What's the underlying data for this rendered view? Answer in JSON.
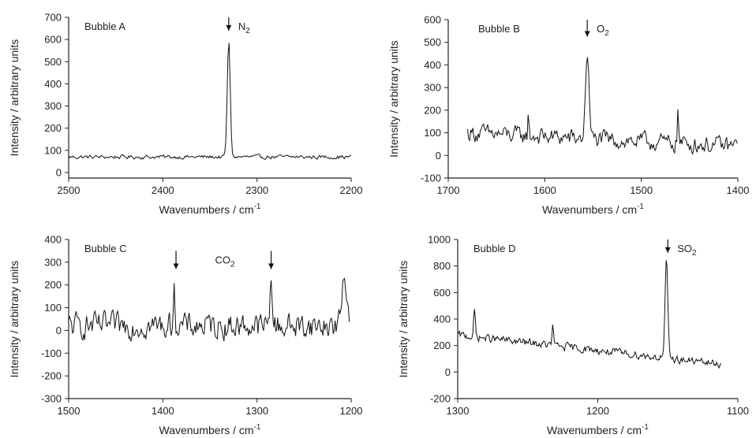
{
  "chart_data": [
    {
      "type": "line",
      "panel_label": "Bubble A",
      "annotations": [
        {
          "text": "N",
          "subscript": "2",
          "x": 2330,
          "arrow_from": 700,
          "arrow_to": 640
        }
      ],
      "xlabel": "Wavenumbers / cm",
      "xlabel_sup": "-1",
      "ylabel": "Intensity / arbitrary units",
      "xlim": [
        2500,
        2200
      ],
      "ylim": [
        -25,
        700
      ],
      "xticks": [
        2500,
        2400,
        2300,
        2200
      ],
      "yticks": [
        0,
        100,
        200,
        300,
        400,
        500,
        600,
        700
      ],
      "baseline": 70,
      "noise": 14,
      "peaks": [
        {
          "x": 2330,
          "height": 525,
          "width": 2.2
        }
      ],
      "x_start": 2500,
      "x_end": 2200,
      "step": 1.2
    },
    {
      "type": "line",
      "panel_label": "Bubble B",
      "annotations": [
        {
          "text": "O",
          "subscript": "2",
          "x": 1556,
          "arrow_from": 600,
          "arrow_to": 525
        }
      ],
      "xlabel": "Wavenumbers / cm",
      "xlabel_sup": "-1",
      "ylabel": "Intensity / arbitrary units",
      "xlim": [
        1700,
        1400
      ],
      "ylim": [
        -100,
        600
      ],
      "xticks": [
        1700,
        1600,
        1500,
        1400
      ],
      "yticks": [
        -100,
        0,
        100,
        200,
        300,
        400,
        500,
        600
      ],
      "baseline": 100,
      "baseline_end": 40,
      "noise": 60,
      "peaks": [
        {
          "x": 1556,
          "height": 390,
          "width": 2.5
        },
        {
          "x": 1462,
          "height": 180,
          "width": 0.8
        },
        {
          "x": 1617,
          "height": 90,
          "width": 0.8
        }
      ],
      "x_start": 1680,
      "x_end": 1400,
      "step": 1.1
    },
    {
      "type": "line",
      "panel_label": "Bubble C",
      "annotations": [
        {
          "text": "CO",
          "subscript": "2",
          "x": 1334,
          "arrow_x": 1386,
          "arrow_from": 350,
          "arrow_to": 270
        },
        {
          "text": "",
          "subscript": "",
          "x": 1285,
          "arrow_x": 1285,
          "arrow_from": 350,
          "arrow_to": 270
        }
      ],
      "xlabel": "Wavenumbers / cm",
      "xlabel_sup": "-1",
      "ylabel": "Intensity / arbitrary units",
      "xlim": [
        1500,
        1200
      ],
      "ylim": [
        -300,
        400
      ],
      "xticks": [
        1500,
        1400,
        1300,
        1200
      ],
      "yticks": [
        -300,
        -200,
        -100,
        0,
        100,
        200,
        300,
        400
      ],
      "baseline": 20,
      "noise": 85,
      "peaks": [
        {
          "x": 1388,
          "height": 160,
          "width": 1.5
        },
        {
          "x": 1285,
          "height": 240,
          "width": 1.5
        },
        {
          "x": 1207,
          "height": 200,
          "width": 4
        }
      ],
      "x_start": 1500,
      "x_end": 1202,
      "step": 1.0
    },
    {
      "type": "line",
      "panel_label": "Bubble D",
      "annotations": [
        {
          "text": "SO",
          "subscript": "2",
          "x": 1150,
          "arrow_from": 1000,
          "arrow_to": 900
        }
      ],
      "xlabel": "Wavenumbers / cm",
      "xlabel_sup": "-1",
      "ylabel": "Intensity / arbitrary units",
      "xlim": [
        1300,
        1100
      ],
      "ylim": [
        -200,
        1000
      ],
      "xticks": [
        1300,
        1200,
        1100
      ],
      "yticks": [
        -200,
        0,
        200,
        400,
        600,
        800,
        1000
      ],
      "baseline": 280,
      "baseline_end": 60,
      "noise": 45,
      "peaks": [
        {
          "x": 1151,
          "height": 720,
          "width": 1.4
        },
        {
          "x": 1288,
          "height": 200,
          "width": 0.8
        },
        {
          "x": 1232,
          "height": 150,
          "width": 0.8
        }
      ],
      "x_start": 1300,
      "x_end": 1112,
      "step": 0.6
    }
  ]
}
